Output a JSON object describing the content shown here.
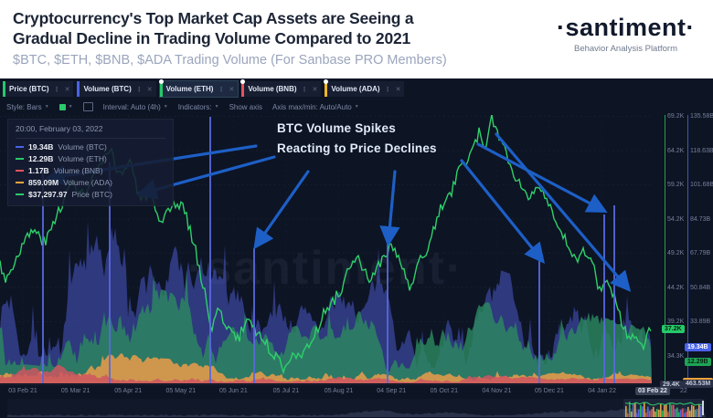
{
  "header": {
    "title_line1": "Cryptocurrency's Top Market Cap Assets are Seeing a",
    "title_line2": "Gradual Decline in Trading Volume Compared to 2021",
    "subtitle": "$BTC, $ETH, $BNB, $ADA Trading Volume (For Sanbase PRO Members)",
    "logo": "·santiment·",
    "tagline": "Behavior Analysis Platform"
  },
  "tabs": [
    {
      "label": "Price (BTC)",
      "color": "#26c96a",
      "pinned": false,
      "selected": false
    },
    {
      "label": "Volume (BTC)",
      "color": "#4a63e8",
      "pinned": false,
      "selected": false
    },
    {
      "label": "Volume (ETH)",
      "color": "#26c96a",
      "pinned": true,
      "selected": true
    },
    {
      "label": "Volume (BNB)",
      "color": "#e8515c",
      "pinned": true,
      "selected": false
    },
    {
      "label": "Volume (ADA)",
      "color": "#f0b429",
      "pinned": true,
      "selected": false
    }
  ],
  "toolbar": {
    "style_label": "Style: Bars",
    "swatch_color": "#2bc96a",
    "interval_label": "Interval: Auto (4h)",
    "indicators_label": "Indicators:",
    "show_axis_label": "Show axis",
    "axis_maxmin_label": "Axis max/min: Auto/Auto"
  },
  "tooltip": {
    "datetime": "20:00, February 03, 2022",
    "rows": [
      {
        "value": "19.34B",
        "label": "Volume (BTC)",
        "color": "#4a63e8"
      },
      {
        "value": "12.29B",
        "label": "Volume (ETH)",
        "color": "#2bc96a"
      },
      {
        "value": "1.17B",
        "label": "Volume (BNB)",
        "color": "#e8515c"
      },
      {
        "value": "859.09M",
        "label": "Volume (ADA)",
        "color": "#f0a43c"
      },
      {
        "value": "$37,297.97",
        "label": "Price (BTC)",
        "color": "#2bc96a"
      }
    ]
  },
  "annotation": {
    "line1": "BTC Volume Spikes",
    "line2": "Reacting to Price Declines"
  },
  "watermark": "·santiment·",
  "axes": {
    "price_ticks": [
      "69.2K",
      "64.2K",
      "59.2K",
      "54.2K",
      "49.2K",
      "44.2K",
      "39.2K",
      "34.3K"
    ],
    "volume_ticks": [
      "135.58B",
      "118.63B",
      "101.68B",
      "84.73B",
      "67.79B",
      "50.84B",
      "33.89B",
      "16.94B"
    ],
    "price_badge": "37.2K",
    "volume_badge_btc": "19.34B",
    "volume_badge_eth": "12.29B",
    "ada_badge": "463.53M",
    "price_bottom_badge": "29.4K",
    "x_labels": [
      "03 Feb 21",
      "05 Mar 21",
      "05 Apr 21",
      "05 May 21",
      "05 Jun 21",
      "05 Jul 21",
      "05 Aug 21",
      "04 Sep 21",
      "05 Oct 21",
      "04 Nov 21",
      "05 Dec 21",
      "04 Jan 22"
    ],
    "x_current": "03 Feb 22",
    "x_year_suffix": "22"
  },
  "chart_data": {
    "type": "mixed",
    "x_range": [
      "03 Feb 21",
      "03 Feb 22"
    ],
    "price_axis_ticks_usd": [
      69200,
      64200,
      59200,
      54200,
      49200,
      44200,
      39200,
      34300,
      29400
    ],
    "volume_axis_ticks": [
      "135.58B",
      "118.63B",
      "101.68B",
      "84.73B",
      "67.79B",
      "50.84B",
      "33.89B",
      "16.94B"
    ],
    "last_values": {
      "price_btc_usd": 37297.97,
      "volume_btc": "19.34B",
      "volume_eth": "12.29B",
      "volume_bnb": "1.17B",
      "volume_ada": "859.09M"
    },
    "price_line": {
      "name": "Price (BTC)",
      "color": "#2fd06a",
      "unit": "K USD",
      "points": [
        [
          0,
          47
        ],
        [
          0.01,
          44.5
        ],
        [
          0.03,
          49
        ],
        [
          0.05,
          52
        ],
        [
          0.07,
          50
        ],
        [
          0.09,
          55
        ],
        [
          0.11,
          59
        ],
        [
          0.13,
          57
        ],
        [
          0.15,
          61
        ],
        [
          0.17,
          63.5
        ],
        [
          0.185,
          60
        ],
        [
          0.2,
          62.5
        ],
        [
          0.215,
          56
        ],
        [
          0.23,
          58
        ],
        [
          0.245,
          52
        ],
        [
          0.26,
          55
        ],
        [
          0.28,
          56
        ],
        [
          0.3,
          49
        ],
        [
          0.315,
          42
        ],
        [
          0.325,
          37.5
        ],
        [
          0.335,
          40
        ],
        [
          0.35,
          37.5
        ],
        [
          0.365,
          35.5
        ],
        [
          0.38,
          39
        ],
        [
          0.4,
          36
        ],
        [
          0.42,
          33.5
        ],
        [
          0.435,
          31.5
        ],
        [
          0.45,
          34
        ],
        [
          0.465,
          33
        ],
        [
          0.48,
          36
        ],
        [
          0.5,
          40
        ],
        [
          0.52,
          42.5
        ],
        [
          0.535,
          46
        ],
        [
          0.55,
          47.5
        ],
        [
          0.565,
          44.5
        ],
        [
          0.58,
          46.5
        ],
        [
          0.6,
          49.5
        ],
        [
          0.615,
          47
        ],
        [
          0.63,
          43
        ],
        [
          0.645,
          47.5
        ],
        [
          0.66,
          50
        ],
        [
          0.675,
          55
        ],
        [
          0.69,
          57
        ],
        [
          0.705,
          61
        ],
        [
          0.72,
          63
        ],
        [
          0.735,
          66.5
        ],
        [
          0.745,
          63
        ],
        [
          0.755,
          68.8
        ],
        [
          0.77,
          65
        ],
        [
          0.785,
          61
        ],
        [
          0.8,
          58.5
        ],
        [
          0.81,
          57
        ],
        [
          0.825,
          59
        ],
        [
          0.84,
          56
        ],
        [
          0.855,
          52
        ],
        [
          0.87,
          50
        ],
        [
          0.885,
          47
        ],
        [
          0.895,
          49.5
        ],
        [
          0.91,
          46.5
        ],
        [
          0.92,
          43
        ],
        [
          0.93,
          44.5
        ],
        [
          0.945,
          41.5
        ],
        [
          0.955,
          38
        ],
        [
          0.965,
          35.5
        ],
        [
          0.975,
          37
        ],
        [
          0.985,
          34.5
        ],
        [
          0.995,
          36.8
        ],
        [
          1,
          37.3
        ]
      ]
    },
    "volume_areas": [
      {
        "name": "Volume (BTC)",
        "color": "#4a58c8",
        "opacity": 0.55,
        "seed": 7,
        "envelope": [
          [
            0,
            150
          ],
          [
            0.02,
            175
          ],
          [
            0.05,
            160
          ],
          [
            0.08,
            165
          ],
          [
            0.1,
            170
          ],
          [
            0.13,
            150
          ],
          [
            0.16,
            175
          ],
          [
            0.19,
            160
          ],
          [
            0.22,
            150
          ],
          [
            0.25,
            165
          ],
          [
            0.28,
            150
          ],
          [
            0.31,
            135
          ],
          [
            0.34,
            110
          ],
          [
            0.37,
            95
          ],
          [
            0.4,
            80
          ],
          [
            0.44,
            95
          ],
          [
            0.48,
            85
          ],
          [
            0.52,
            95
          ],
          [
            0.56,
            110
          ],
          [
            0.6,
            100
          ],
          [
            0.63,
            90
          ],
          [
            0.66,
            95
          ],
          [
            0.7,
            105
          ],
          [
            0.74,
            125
          ],
          [
            0.78,
            115
          ],
          [
            0.82,
            105
          ],
          [
            0.85,
            115
          ],
          [
            0.88,
            125
          ],
          [
            0.9,
            110
          ],
          [
            0.93,
            95
          ],
          [
            0.96,
            90
          ],
          [
            1,
            75
          ]
        ]
      },
      {
        "name": "Volume (ETH)",
        "color": "#2c8a60",
        "opacity": 0.8,
        "seed": 13,
        "envelope": [
          [
            0,
            105
          ],
          [
            0.04,
            115
          ],
          [
            0.08,
            100
          ],
          [
            0.12,
            110
          ],
          [
            0.16,
            105
          ],
          [
            0.2,
            95
          ],
          [
            0.24,
            100
          ],
          [
            0.28,
            90
          ],
          [
            0.32,
            75
          ],
          [
            0.36,
            60
          ],
          [
            0.4,
            55
          ],
          [
            0.45,
            65
          ],
          [
            0.5,
            60
          ],
          [
            0.55,
            75
          ],
          [
            0.6,
            70
          ],
          [
            0.65,
            65
          ],
          [
            0.7,
            75
          ],
          [
            0.75,
            85
          ],
          [
            0.8,
            78
          ],
          [
            0.85,
            72
          ],
          [
            0.88,
            80
          ],
          [
            0.92,
            70
          ],
          [
            0.96,
            62
          ],
          [
            1,
            58
          ]
        ]
      },
      {
        "name": "Volume (ADA)",
        "color": "#e09a4a",
        "opacity": 0.9,
        "seed": 21,
        "envelope": [
          [
            0,
            18
          ],
          [
            0.05,
            30
          ],
          [
            0.1,
            38
          ],
          [
            0.15,
            34
          ],
          [
            0.2,
            30
          ],
          [
            0.25,
            26
          ],
          [
            0.3,
            24
          ],
          [
            0.35,
            16
          ],
          [
            0.4,
            14
          ],
          [
            0.45,
            22
          ],
          [
            0.5,
            26
          ],
          [
            0.55,
            20
          ],
          [
            0.6,
            16
          ],
          [
            0.65,
            14
          ],
          [
            0.7,
            16
          ],
          [
            0.75,
            18
          ],
          [
            0.8,
            14
          ],
          [
            0.85,
            12
          ],
          [
            0.9,
            12
          ],
          [
            0.95,
            10
          ],
          [
            1,
            9
          ]
        ]
      },
      {
        "name": "Volume (BNB)",
        "color": "#cf5560",
        "opacity": 0.85,
        "seed": 31,
        "envelope": [
          [
            0,
            10
          ],
          [
            0.05,
            16
          ],
          [
            0.1,
            20
          ],
          [
            0.15,
            18
          ],
          [
            0.2,
            14
          ],
          [
            0.25,
            12
          ],
          [
            0.3,
            12
          ],
          [
            0.35,
            8
          ],
          [
            0.4,
            7
          ],
          [
            0.45,
            10
          ],
          [
            0.5,
            12
          ],
          [
            0.55,
            9
          ],
          [
            0.6,
            7
          ],
          [
            0.65,
            6
          ],
          [
            0.7,
            8
          ],
          [
            0.75,
            9
          ],
          [
            0.8,
            7
          ],
          [
            0.85,
            6
          ],
          [
            0.9,
            6
          ],
          [
            0.95,
            5
          ],
          [
            1,
            5
          ]
        ]
      }
    ],
    "volume_spikes": {
      "color": "#5968de",
      "positions": [
        [
          47,
          59
        ],
        [
          120,
          52
        ],
        [
          230,
          2
        ],
        [
          278,
          146
        ],
        [
          424,
          124
        ],
        [
          590,
          154
        ],
        [
          661,
          109
        ],
        [
          672,
          99
        ]
      ]
    },
    "annotation_arrows": {
      "color": "#1d5fc6",
      "segments": [
        [
          280,
          34,
          55,
          69
        ],
        [
          300,
          46,
          155,
          86
        ],
        [
          337,
          62,
          281,
          142
        ],
        [
          432,
          62,
          425,
          138
        ],
        [
          505,
          50,
          592,
          158
        ],
        [
          523,
          32,
          659,
          104
        ],
        [
          543,
          21,
          686,
          189
        ]
      ]
    },
    "legend_position": "top-left tooltip",
    "grid": true
  }
}
